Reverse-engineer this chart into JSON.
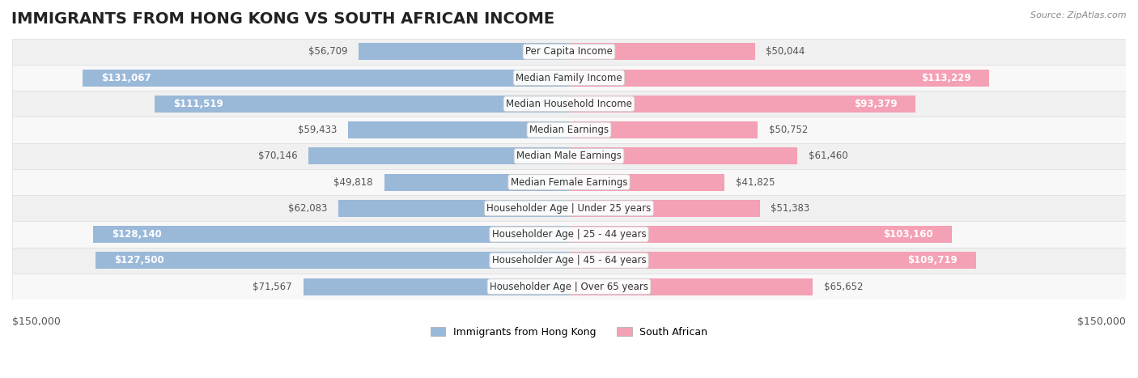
{
  "title": "IMMIGRANTS FROM HONG KONG VS SOUTH AFRICAN INCOME",
  "source": "Source: ZipAtlas.com",
  "categories": [
    "Per Capita Income",
    "Median Family Income",
    "Median Household Income",
    "Median Earnings",
    "Median Male Earnings",
    "Median Female Earnings",
    "Householder Age | Under 25 years",
    "Householder Age | 25 - 44 years",
    "Householder Age | 45 - 64 years",
    "Householder Age | Over 65 years"
  ],
  "hk_values": [
    56709,
    131067,
    111519,
    59433,
    70146,
    49818,
    62083,
    128140,
    127500,
    71567
  ],
  "sa_values": [
    50044,
    113229,
    93379,
    50752,
    61460,
    41825,
    51383,
    103160,
    109719,
    65652
  ],
  "hk_labels": [
    "$56,709",
    "$131,067",
    "$111,519",
    "$59,433",
    "$70,146",
    "$49,818",
    "$62,083",
    "$128,140",
    "$127,500",
    "$71,567"
  ],
  "sa_labels": [
    "$50,044",
    "$113,229",
    "$93,379",
    "$50,752",
    "$61,460",
    "$41,825",
    "$51,383",
    "$103,160",
    "$109,719",
    "$65,652"
  ],
  "hk_color": "#9ab8d8",
  "sa_color": "#f4a0b5",
  "hk_color_dark": "#6a9ec8",
  "sa_color_dark": "#e87096",
  "hk_label_dark": [
    false,
    true,
    true,
    false,
    false,
    false,
    false,
    true,
    true,
    false
  ],
  "sa_label_dark": [
    false,
    true,
    true,
    false,
    false,
    false,
    false,
    true,
    true,
    false
  ],
  "max_val": 150000,
  "row_bg_light": "#f5f5f5",
  "row_bg_dark": "#e8e8e8",
  "legend_hk": "Immigrants from Hong Kong",
  "legend_sa": "South African",
  "title_fontsize": 14,
  "label_fontsize": 8.5,
  "category_fontsize": 8.5
}
